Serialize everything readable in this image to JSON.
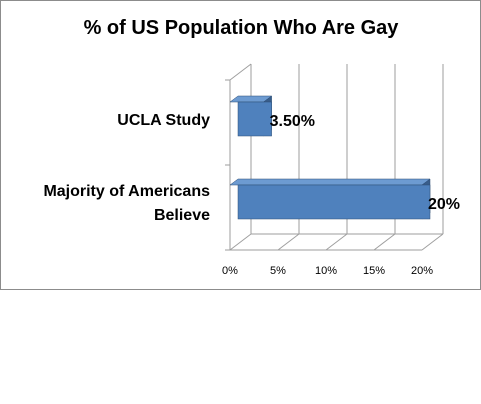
{
  "chart_data": {
    "type": "bar",
    "orientation": "horizontal",
    "style": "3d",
    "title": "% of US Population Who Are Gay",
    "categories": [
      "UCLA Study",
      "Majority of Americans Believe"
    ],
    "category_lines": [
      [
        "UCLA Study"
      ],
      [
        "Majority of Americans",
        "Believe"
      ]
    ],
    "values": [
      3.5,
      20
    ],
    "data_labels": [
      "3.50%",
      "20%"
    ],
    "x_ticks": [
      "0%",
      "5%",
      "10%",
      "15%",
      "20%"
    ],
    "xlim": [
      0,
      20
    ],
    "grid": true,
    "legend": "none",
    "colors": {
      "bar_front": "#4f81bd",
      "bar_top": "#6d9bd1",
      "bar_side": "#385d8a",
      "grid": "#9e9e9e"
    }
  }
}
